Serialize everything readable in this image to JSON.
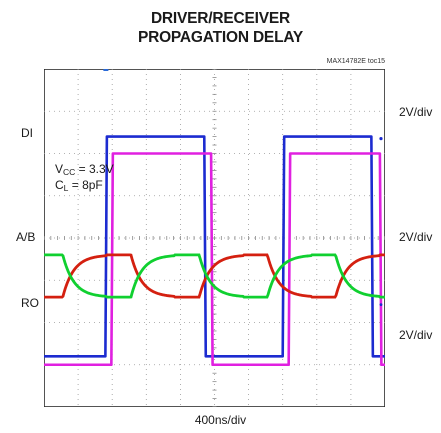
{
  "chart_data": {
    "type": "line",
    "title": [
      "DRIVER/RECEIVER",
      "PROPAGATION DELAY"
    ],
    "figure_id": "MAX14782E toc15",
    "x_axis": {
      "scale_label": "400ns/div",
      "divisions": 10,
      "range_ns": [
        0,
        4000
      ]
    },
    "y_axis": {
      "divisions": 8
    },
    "grid": true,
    "conditions": {
      "vcc": {
        "symbol": "V",
        "sub": "CC",
        "value": " = 3.3V"
      },
      "cl": {
        "symbol": "C",
        "sub": "L",
        "value": " = 8pF"
      }
    },
    "channels": [
      {
        "name": "DI",
        "scale": "2V/div",
        "color": "#1c2bd0",
        "low_div": 6.8,
        "high_div": 1.6,
        "levels": [
          [
            "-",
            0
          ],
          [
            720,
            1
          ],
          [
            1880,
            0
          ],
          [
            2800,
            1
          ],
          [
            3840,
            0
          ]
        ]
      },
      {
        "name": "A/B",
        "scale": "2V/div",
        "color": "#10d030",
        "complement_color": "#d42010",
        "low_div": 5.4,
        "high_div": 4.4,
        "crossings_ns": [
          220,
          1020,
          1820,
          2620,
          3420
        ]
      },
      {
        "name": "RO",
        "scale": "2V/div",
        "color": "#e020e0",
        "low_div": 2.0,
        "high_div": 7.0,
        "levels": [
          [
            "-",
            1
          ],
          [
            790,
            0
          ],
          [
            1960,
            1
          ],
          [
            2870,
            0
          ],
          [
            3940,
            1
          ]
        ]
      }
    ]
  }
}
